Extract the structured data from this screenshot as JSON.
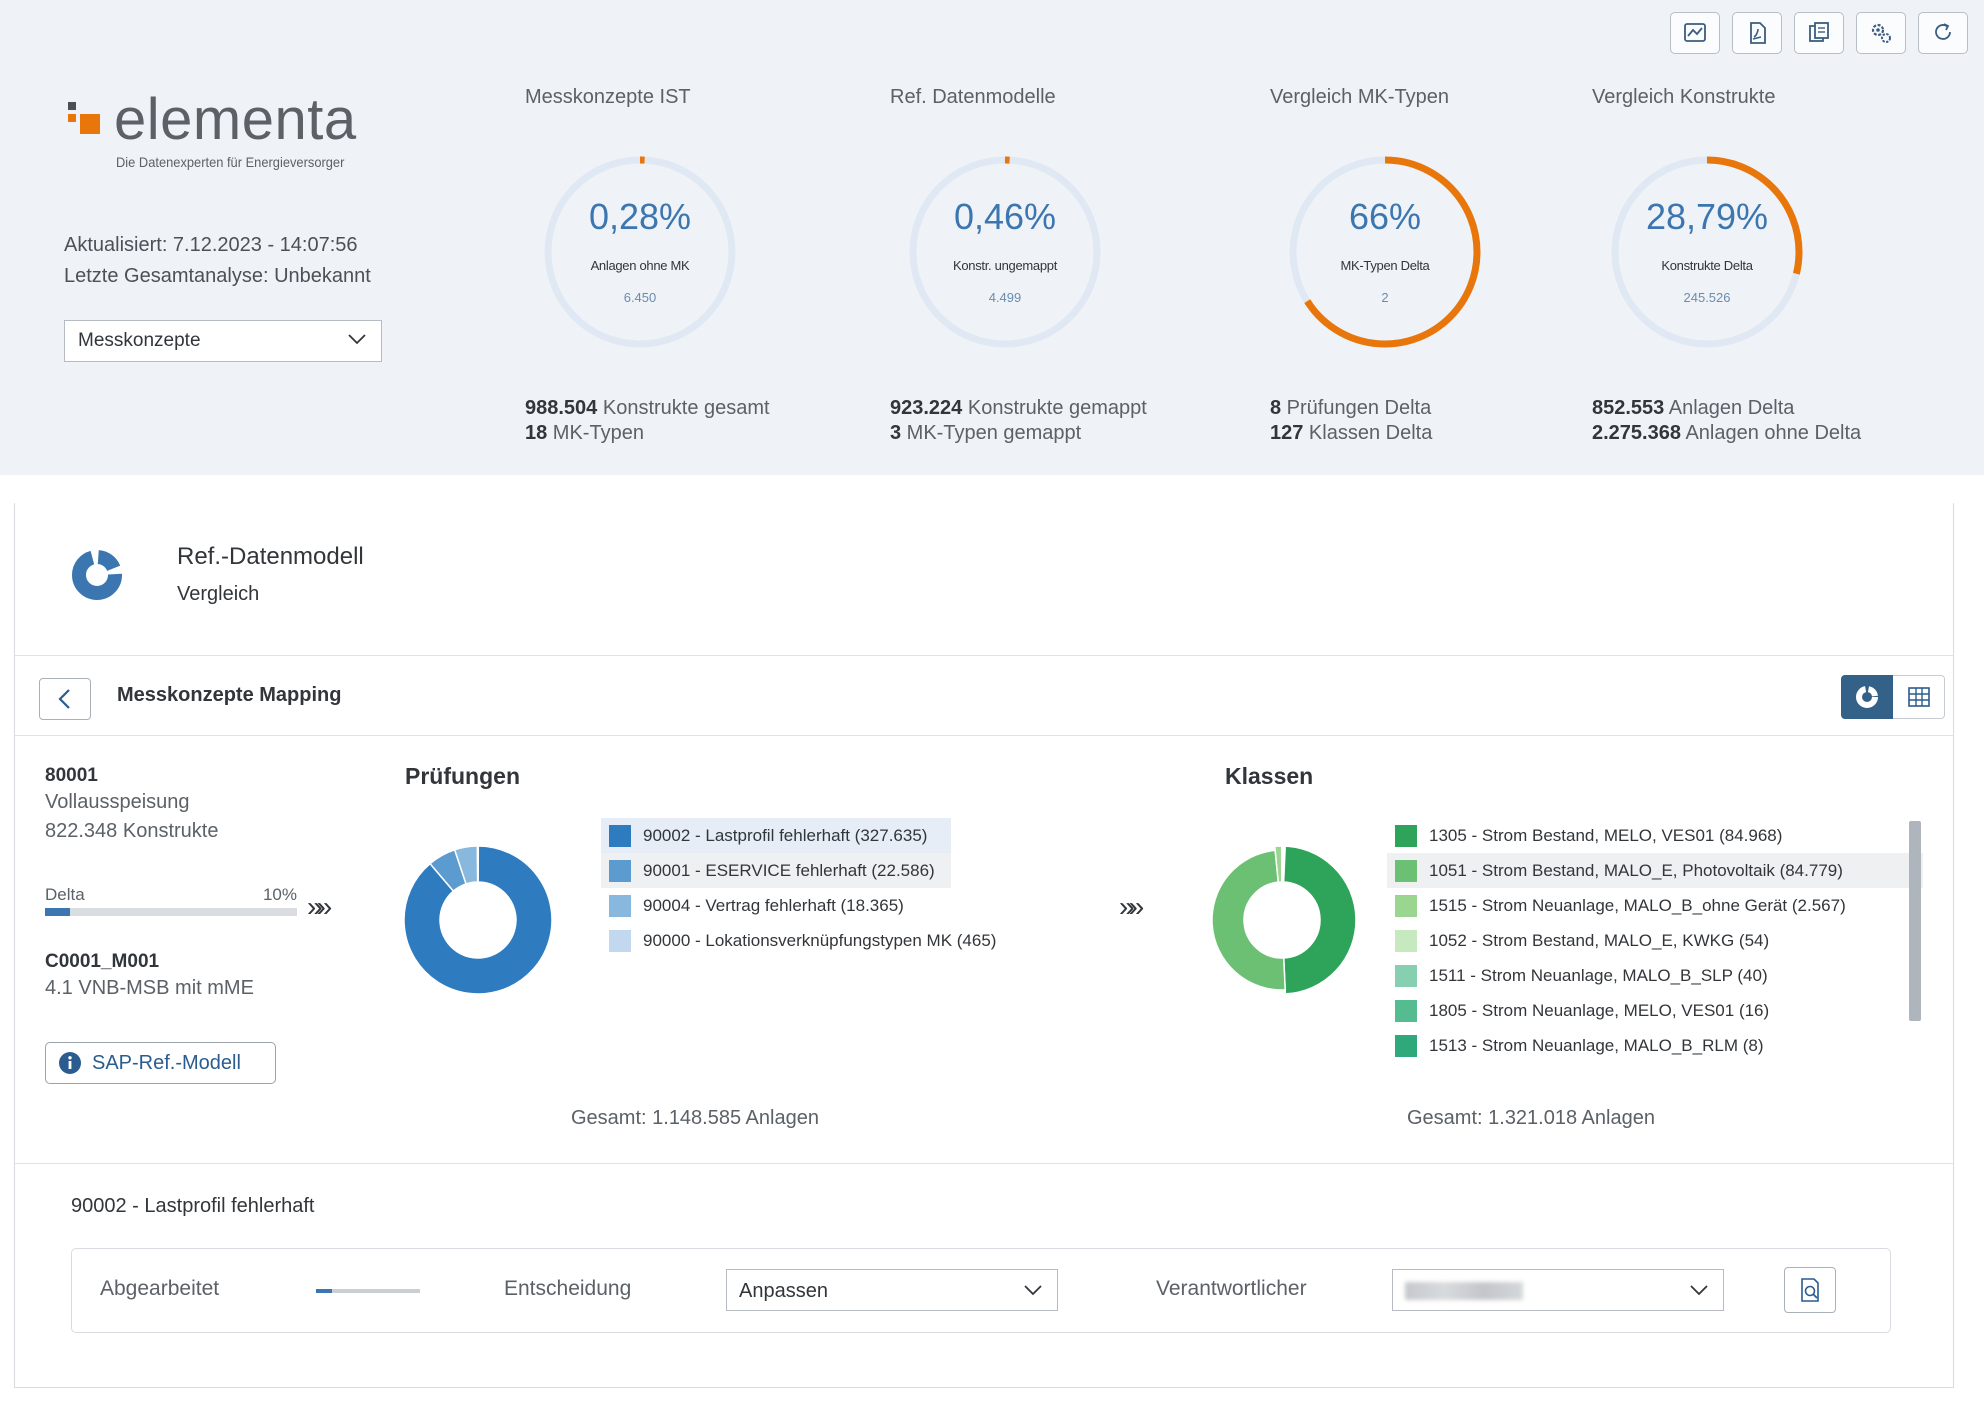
{
  "brand": {
    "name": "elementa",
    "tagline": "Die Datenexperten für Energieversorger",
    "colors": {
      "orange": "#e8760b",
      "blue": "#3b76b0",
      "dark": "#5b6167"
    }
  },
  "toolbar": {
    "buttons": [
      {
        "icon": "analysis-image-icon"
      },
      {
        "icon": "export-pdf-icon"
      },
      {
        "icon": "copy-document-icon"
      },
      {
        "icon": "settings-icon"
      },
      {
        "icon": "refresh-icon"
      }
    ]
  },
  "status": {
    "updated": "Aktualisiert: 7.12.2023 - 14:07:56",
    "last_analysis": "Letzte Gesamtanalyse: Unbekannt"
  },
  "view_select": {
    "value": "Messkonzepte"
  },
  "kpis": [
    {
      "title": "Messkonzepte IST",
      "value": "0,28%",
      "label": "Anlagen ohne MK",
      "count": "6.450",
      "fraction": 0.0028,
      "stats": [
        {
          "num": "988.504",
          "text": " Konstrukte gesamt"
        },
        {
          "num": "18",
          "text": " MK-Typen"
        }
      ]
    },
    {
      "title": "Ref. Datenmodelle",
      "value": "0,46%",
      "label": "Konstr. ungemappt",
      "count": "4.499",
      "fraction": 0.0046,
      "stats": [
        {
          "num": "923.224",
          "text": " Konstrukte gemappt"
        },
        {
          "num": "3",
          "text": " MK-Typen gemappt"
        }
      ]
    },
    {
      "title": "Vergleich MK-Typen",
      "value": "66%",
      "label": "MK-Typen Delta",
      "count": "2",
      "fraction": 0.66,
      "stats": [
        {
          "num": "8",
          "text": " Prüfungen Delta"
        },
        {
          "num": "127",
          "text": " Klassen Delta"
        }
      ]
    },
    {
      "title": "Vergleich Konstrukte",
      "value": "28,79%",
      "label": "Konstrukte Delta",
      "count": "245.526",
      "fraction": 0.2879,
      "stats": [
        {
          "num": "852.553",
          "text": " Anlagen Delta"
        },
        {
          "num": "2.275.368",
          "text": " Anlagen ohne Delta"
        }
      ]
    }
  ],
  "card": {
    "title": "Ref.-Datenmodell",
    "subtitle": "Vergleich"
  },
  "section": {
    "title": "Messkonzepte Mapping"
  },
  "info": {
    "code": "80001",
    "name": "Vollausspeisung",
    "konstrukte": "822.348 Konstrukte",
    "delta_label": "Delta",
    "delta_value": "10%",
    "delta_fraction": 0.1,
    "code2": "C0001_M001",
    "name2": "4.1 VNB-MSB mit mME",
    "sap_button": "SAP-Ref.-Modell"
  },
  "chevrons": "»»",
  "chart_data": [
    {
      "type": "pie",
      "title": "Prüfungen",
      "categories": [
        "90002 - Lastprofil fehlerhaft (327.635)",
        "90001 - ESERVICE fehlerhaft (22.586)",
        "90004 - Vertrag fehlerhaft (18.365)",
        "90000 - Lokationsverknüpfungstypen MK (465)"
      ],
      "values": [
        327635,
        22586,
        18365,
        465
      ],
      "colors": [
        "#2e7bc0",
        "#5b9bd0",
        "#89b8de",
        "#c1d8ee"
      ],
      "total_label": "Gesamt: 1.148.585 Anlagen"
    },
    {
      "type": "pie",
      "title": "Klassen",
      "categories": [
        "1305 - Strom Bestand, MELO, VES01 (84.968)",
        "1051 - Strom Bestand, MALO_E, Photovoltaik (84.779)",
        "1515 - Strom Neuanlage, MALO_B_ohne Gerät (2.567)",
        "1052 - Strom Bestand, MALO_E, KWKG (54)",
        "1511 - Strom Neuanlage, MALO_B_SLP (40)",
        "1805 - Strom Neuanlage, MELO, VES01 (16)",
        "1513 - Strom Neuanlage, MALO_B_RLM (8)"
      ],
      "values": [
        84968,
        84779,
        2567,
        54,
        40,
        16,
        8
      ],
      "colors": [
        "#2ea35a",
        "#6cc073",
        "#9ad690",
        "#c6e9c0",
        "#86cfb1",
        "#55bb91",
        "#2fa97b"
      ],
      "total_label": "Gesamt: 1.321.018 Anlagen"
    }
  ],
  "detail": {
    "title": "90002 - Lastprofil fehlerhaft",
    "done_label": "Abgearbeitet",
    "done_fraction": 0.15,
    "decision_label": "Entscheidung",
    "decision_value": "Anpassen",
    "owner_label": "Verantwortlicher"
  }
}
